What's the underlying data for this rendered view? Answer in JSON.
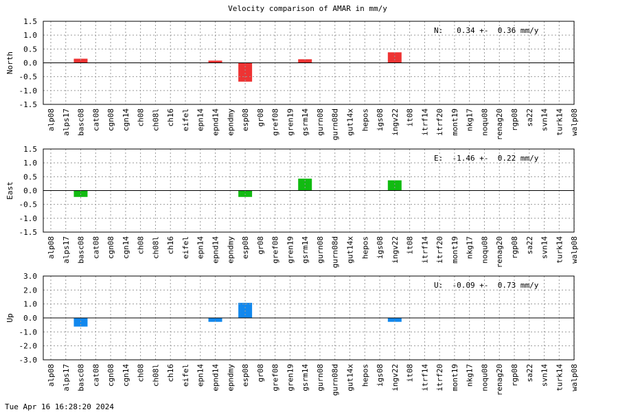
{
  "title": "Velocity comparison of AMAR in mm/y",
  "timestamp": "Tue Apr 16 16:28:20 2024",
  "chart_data": [
    {
      "type": "bar",
      "name": "North",
      "ylabel": "North",
      "ylim": [
        -1.5,
        1.5
      ],
      "yticks": [
        "1.5",
        "1.0",
        "0.5",
        "0.0",
        "-0.5",
        "-1.0",
        "-1.5"
      ],
      "tick_values": [
        1.5,
        1.0,
        0.5,
        0.0,
        -0.5,
        -1.0,
        -1.5
      ],
      "summary": "N:   0.34 +-  0.36 mm/y",
      "color": "#ee3333",
      "categories": [
        "alp08",
        "alps17",
        "basc08",
        "cat08",
        "cgn08",
        "cgn14",
        "ch08",
        "ch08l",
        "ch16",
        "eifel",
        "epn14",
        "epnd14",
        "epndmy",
        "esp08",
        "gr08",
        "gref08",
        "gren19",
        "gsrm14",
        "gurn08",
        "gurn08d",
        "gut14x",
        "hepos",
        "igs08",
        "ingv22",
        "it08",
        "itrf14",
        "itrf20",
        "mont19",
        "nkg17",
        "noqu08",
        "renag20",
        "rgp08",
        "sa22",
        "svn14",
        "turk14",
        "walp08"
      ],
      "values": [
        null,
        null,
        0.15,
        null,
        null,
        null,
        null,
        null,
        null,
        null,
        null,
        0.08,
        null,
        -0.68,
        null,
        null,
        null,
        0.13,
        null,
        null,
        null,
        null,
        null,
        0.38,
        null,
        null,
        null,
        null,
        null,
        null,
        null,
        null,
        null,
        null,
        null,
        null
      ]
    },
    {
      "type": "bar",
      "name": "East",
      "ylabel": "East",
      "ylim": [
        -1.5,
        1.5
      ],
      "yticks": [
        "1.5",
        "1.0",
        "0.5",
        "0.0",
        "-0.5",
        "-1.0",
        "-1.5"
      ],
      "tick_values": [
        1.5,
        1.0,
        0.5,
        0.0,
        -0.5,
        -1.0,
        -1.5
      ],
      "summary": "E:  -1.46 +-  0.22 mm/y",
      "color": "#11bb11",
      "categories": [
        "alp08",
        "alps17",
        "basc08",
        "cat08",
        "cgn08",
        "cgn14",
        "ch08",
        "ch08l",
        "ch16",
        "eifel",
        "epn14",
        "epnd14",
        "epndmy",
        "esp08",
        "gr08",
        "gref08",
        "gren19",
        "gsrm14",
        "gurn08",
        "gurn08d",
        "gut14x",
        "hepos",
        "igs08",
        "ingv22",
        "it08",
        "itrf14",
        "itrf20",
        "mont19",
        "nkg17",
        "noqu08",
        "renag20",
        "rgp08",
        "sa22",
        "svn14",
        "turk14",
        "walp08"
      ],
      "values": [
        null,
        null,
        -0.23,
        null,
        null,
        null,
        null,
        null,
        null,
        null,
        null,
        null,
        null,
        -0.23,
        null,
        null,
        null,
        0.43,
        null,
        null,
        null,
        null,
        null,
        0.37,
        null,
        null,
        null,
        null,
        null,
        null,
        null,
        null,
        null,
        null,
        null,
        null
      ]
    },
    {
      "type": "bar",
      "name": "Up",
      "ylabel": "Up",
      "ylim": [
        -3.0,
        3.0
      ],
      "yticks": [
        "3.0",
        "2.0",
        "1.0",
        "0.0",
        "-1.0",
        "-2.0",
        "-3.0"
      ],
      "tick_values": [
        3.0,
        2.0,
        1.0,
        0.0,
        -1.0,
        -2.0,
        -3.0
      ],
      "summary": "U:  -0.09 +-  0.73 mm/y",
      "color": "#1188ee",
      "categories": [
        "alp08",
        "alps17",
        "basc08",
        "cat08",
        "cgn08",
        "cgn14",
        "ch08",
        "ch08l",
        "ch16",
        "eifel",
        "epn14",
        "epnd14",
        "epndmy",
        "esp08",
        "gr08",
        "gref08",
        "gren19",
        "gsrm14",
        "gurn08",
        "gurn08d",
        "gut14x",
        "hepos",
        "igs08",
        "ingv22",
        "it08",
        "itrf14",
        "itrf20",
        "mont19",
        "nkg17",
        "noqu08",
        "renag20",
        "rgp08",
        "sa22",
        "svn14",
        "turk14",
        "walp08"
      ],
      "values": [
        null,
        null,
        -0.62,
        null,
        null,
        null,
        null,
        null,
        null,
        null,
        null,
        -0.28,
        null,
        1.08,
        null,
        null,
        null,
        null,
        null,
        null,
        null,
        null,
        null,
        -0.28,
        null,
        null,
        null,
        null,
        null,
        null,
        null,
        null,
        null,
        null,
        null,
        null
      ]
    }
  ]
}
